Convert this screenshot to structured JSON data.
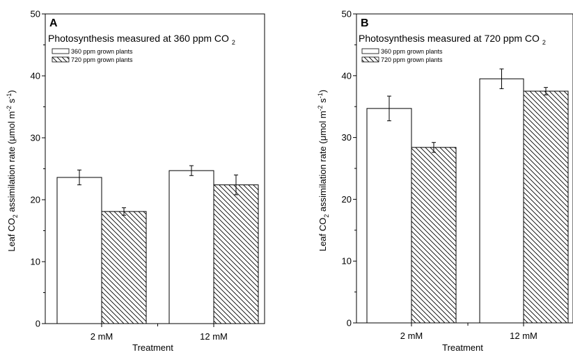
{
  "chart_data": [
    {
      "type": "bar",
      "panel": "A",
      "title_main": "Photosynthesis measured at 360 ppm CO",
      "title_sub": "2",
      "xlabel": "Treatment",
      "ylabel_parts": [
        "Leaf CO",
        "2",
        " assimilation rate (",
        "μ",
        "mol m",
        "-2",
        " s",
        "-1",
        ")"
      ],
      "ylim": [
        0,
        50
      ],
      "yticks": [
        "0",
        "10",
        "20",
        "30",
        "40",
        "50"
      ],
      "categories": [
        "2 mM",
        "12 mM"
      ],
      "legend": "top-left",
      "series": [
        {
          "name": "360 ppm grown plants",
          "values": [
            23.6,
            24.7
          ],
          "errors": [
            1.2,
            0.8
          ],
          "fill": "open"
        },
        {
          "name": "720 ppm grown plants",
          "values": [
            18.1,
            22.4
          ],
          "errors": [
            0.6,
            1.6
          ],
          "fill": "hatched"
        }
      ]
    },
    {
      "type": "bar",
      "panel": "B",
      "title_main": "Photosynthesis measured at 720 ppm CO",
      "title_sub": "2",
      "xlabel": "Treatment",
      "ylabel_parts": [
        "Leaf CO",
        "2",
        " assimilation rate (",
        "μ",
        "mol m",
        "-2",
        " s",
        "-1",
        ")"
      ],
      "ylim": [
        0,
        50
      ],
      "yticks": [
        "0",
        "10",
        "20",
        "30",
        "40",
        "50"
      ],
      "categories": [
        "2 mM",
        "12 mM"
      ],
      "legend": "top-left",
      "series": [
        {
          "name": "360 ppm grown plants",
          "values": [
            34.7,
            39.5
          ],
          "errors": [
            2.0,
            1.6
          ],
          "fill": "open"
        },
        {
          "name": "720 ppm grown plants",
          "values": [
            28.4,
            37.5
          ],
          "errors": [
            0.8,
            0.6
          ],
          "fill": "hatched"
        }
      ]
    }
  ]
}
